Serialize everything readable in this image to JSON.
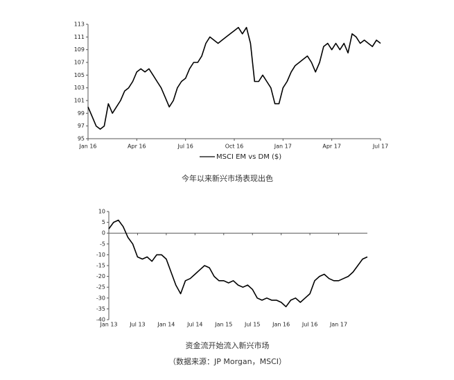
{
  "chart_data": [
    {
      "type": "line",
      "x": [
        0,
        0.25,
        0.5,
        0.75,
        1,
        1.25,
        1.5,
        1.75,
        2,
        2.25,
        2.5,
        2.75,
        3,
        3.25,
        3.5,
        3.75,
        4,
        4.25,
        4.5,
        4.75,
        5,
        5.25,
        5.5,
        5.75,
        6,
        6.25,
        6.5,
        6.75,
        7,
        7.25,
        7.5,
        7.75,
        8,
        8.25,
        8.5,
        8.75,
        9,
        9.25,
        9.5,
        9.75,
        10,
        10.25,
        10.5,
        10.75,
        11,
        11.25,
        11.5,
        11.75,
        12,
        12.25,
        12.5,
        12.75,
        13,
        13.25,
        13.5,
        13.75,
        14,
        14.25,
        14.5,
        14.75,
        15,
        15.25,
        15.5,
        15.75,
        16,
        16.25,
        16.5,
        16.75,
        17,
        17.25,
        17.5,
        17.75,
        18
      ],
      "series": [
        {
          "name": "MSCI EM vs DM ($)",
          "color": "#000000",
          "values": [
            100,
            98.5,
            97,
            96.5,
            97,
            100.5,
            99,
            100,
            101,
            102.5,
            103,
            104,
            105.5,
            106,
            105.5,
            106,
            105,
            104,
            103,
            101.5,
            100,
            101,
            103,
            104,
            104.5,
            106,
            107,
            107,
            108,
            110,
            111,
            110.5,
            110,
            110.5,
            111,
            111.5,
            112,
            112.5,
            111.5,
            112.5,
            110,
            104,
            104,
            105,
            104,
            103,
            100.5,
            100.5,
            103,
            104,
            105.5,
            106.5,
            107,
            107.5,
            108,
            107,
            105.5,
            107,
            109.5,
            110,
            109,
            110,
            109,
            110,
            108.5,
            111.5,
            111,
            110,
            110.5,
            110,
            109.5,
            110.5,
            110
          ]
        }
      ],
      "xlim": [
        0,
        18
      ],
      "xticks": [
        {
          "value": 0,
          "label": "Jan 16"
        },
        {
          "value": 3,
          "label": "Apr 16"
        },
        {
          "value": 6,
          "label": "Jul 16"
        },
        {
          "value": 9,
          "label": "Oct 16"
        },
        {
          "value": 12,
          "label": "Jan 17"
        },
        {
          "value": 15,
          "label": "Apr 17"
        },
        {
          "value": 18,
          "label": "Jul 17"
        }
      ],
      "ylim": [
        95,
        113
      ],
      "yticks": [
        95,
        97,
        99,
        101,
        103,
        105,
        107,
        109,
        111,
        113
      ],
      "legend": "bottom",
      "caption": "今年以来新兴市场表现出色"
    },
    {
      "type": "line",
      "x": [
        0,
        1,
        2,
        3,
        4,
        5,
        6,
        7,
        8,
        9,
        10,
        11,
        12,
        13,
        14,
        15,
        16,
        17,
        18,
        19,
        20,
        21,
        22,
        23,
        24,
        25,
        26,
        27,
        28,
        29,
        30,
        31,
        32,
        33,
        34,
        35,
        36,
        37,
        38,
        39,
        40,
        41,
        42,
        43,
        44,
        45,
        46,
        47,
        48,
        49,
        50,
        51,
        52,
        53,
        54
      ],
      "series": [
        {
          "color": "#000000",
          "values": [
            2,
            5,
            6,
            3,
            -2,
            -5,
            -11,
            -12,
            -11,
            -13,
            -10,
            -10,
            -12,
            -18,
            -24,
            -28,
            -22,
            -21,
            -19,
            -17,
            -15,
            -16,
            -20,
            -22,
            -22,
            -23,
            -22,
            -24,
            -25,
            -24,
            -26,
            -30,
            -31,
            -30,
            -31,
            -31,
            -32,
            -34,
            -31,
            -30,
            -32,
            -30,
            -28,
            -22,
            -20,
            -19,
            -21,
            -22,
            -22,
            -21,
            -20,
            -18,
            -15,
            -12,
            -11
          ]
        }
      ],
      "xlim": [
        0,
        54
      ],
      "xticks": [
        {
          "value": 0,
          "label": "Jan 13"
        },
        {
          "value": 6,
          "label": "Jul 13"
        },
        {
          "value": 12,
          "label": "Jan 14"
        },
        {
          "value": 18,
          "label": "Jul 14"
        },
        {
          "value": 24,
          "label": "Jan 15"
        },
        {
          "value": 30,
          "label": "Jul 15"
        },
        {
          "value": 36,
          "label": "Jan 16"
        },
        {
          "value": 42,
          "label": "Jul 16"
        },
        {
          "value": 48,
          "label": "Jan 17"
        }
      ],
      "ylim": [
        -40,
        10
      ],
      "yticks": [
        10,
        5,
        0,
        -5,
        -10,
        -15,
        -20,
        -25,
        -30,
        -35,
        -40
      ],
      "caption": "资金流开始流入新兴市场"
    }
  ],
  "source": "（数据来源：JP Morgan，MSCI）"
}
